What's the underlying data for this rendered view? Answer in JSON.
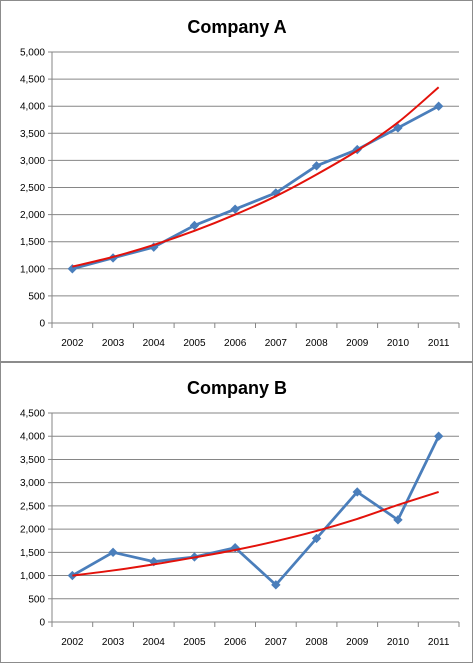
{
  "chart_data": [
    {
      "type": "line",
      "title": "Company A",
      "x": [
        "2002",
        "2003",
        "2004",
        "2005",
        "2006",
        "2007",
        "2008",
        "2009",
        "2010",
        "2011"
      ],
      "y_ticks": [
        "0",
        "500",
        "1,000",
        "1,500",
        "2,000",
        "2,500",
        "3,000",
        "3,500",
        "4,000",
        "4,500",
        "5,000"
      ],
      "ylim": [
        0,
        5000
      ],
      "grid": true,
      "series": [
        {
          "values": [
            1000,
            1200,
            1400,
            1800,
            2100,
            2400,
            2900,
            3200,
            3600,
            4000
          ],
          "color": "#4a7ebb",
          "marker": "diamond"
        },
        {
          "values": [
            1040,
            1220,
            1440,
            1700,
            2000,
            2340,
            2740,
            3180,
            3700,
            4350
          ],
          "color": "#e3120b",
          "style": "trendline"
        }
      ]
    },
    {
      "type": "line",
      "title": "Company B",
      "x": [
        "2002",
        "2003",
        "2004",
        "2005",
        "2006",
        "2007",
        "2008",
        "2009",
        "2010",
        "2011"
      ],
      "y_ticks": [
        "0",
        "500",
        "1,000",
        "1,500",
        "2,000",
        "2,500",
        "3,000",
        "3,500",
        "4,000",
        "4,500"
      ],
      "ylim": [
        0,
        4500
      ],
      "grid": true,
      "series": [
        {
          "values": [
            1000,
            1500,
            1300,
            1400,
            1600,
            800,
            1800,
            2800,
            2200,
            4000
          ],
          "color": "#4a7ebb",
          "marker": "diamond"
        },
        {
          "values": [
            1000,
            1110,
            1240,
            1390,
            1550,
            1740,
            1960,
            2220,
            2520,
            2800
          ],
          "color": "#e3120b",
          "style": "trendline"
        }
      ]
    }
  ]
}
